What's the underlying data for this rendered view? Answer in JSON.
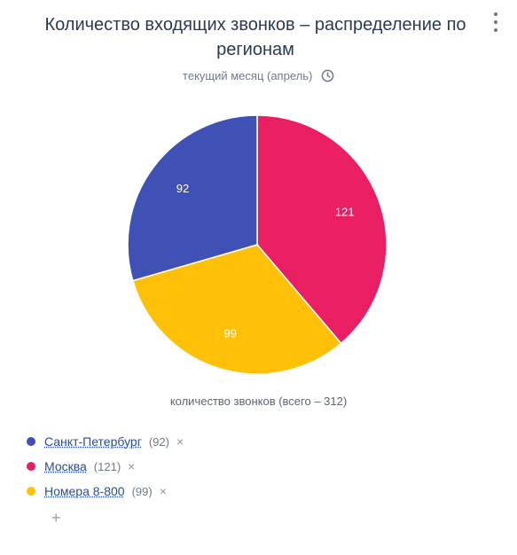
{
  "header": {
    "title": "Количество входящих звонков – распределение по регионам",
    "subtitle": "текущий месяц (апрель)",
    "clock_icon": "clock-icon",
    "menu_icon": "kebab-menu-icon"
  },
  "chart_data": {
    "type": "pie",
    "categories": [
      "Санкт-Петербург",
      "Москва",
      "Номера 8-800"
    ],
    "values": [
      92,
      121,
      99
    ],
    "colors": [
      "#3f51b5",
      "#e91e63",
      "#ffc107"
    ],
    "caption": "количество звонков (всего – 312)",
    "label_color": "#ffffff"
  },
  "legend": {
    "items": [
      {
        "label": "Санкт-Петербург",
        "count": "(92)",
        "color": "#3f51b5"
      },
      {
        "label": "Москва",
        "count": "(121)",
        "color": "#e91e63"
      },
      {
        "label": "Номера 8-800",
        "count": "(99)",
        "color": "#ffc107"
      }
    ],
    "remove_symbol": "×",
    "add_symbol": "+"
  }
}
